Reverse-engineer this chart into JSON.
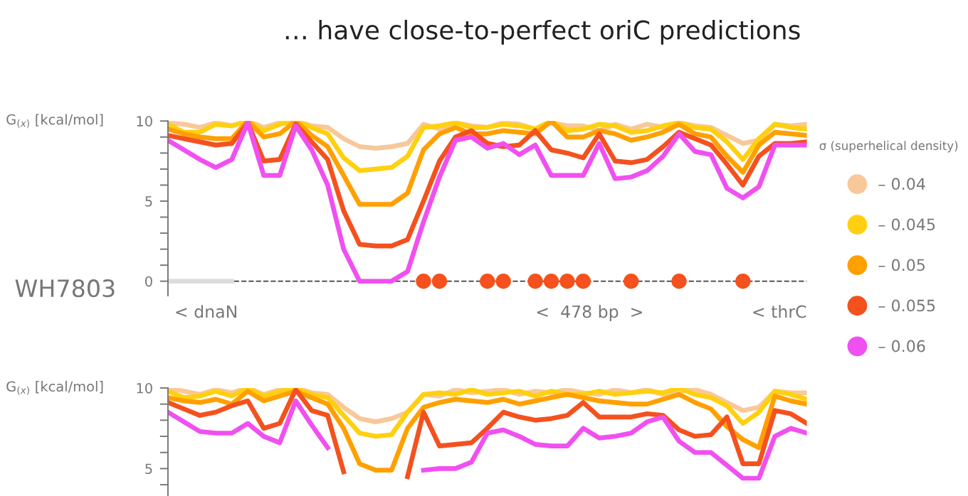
{
  "chart_data": [
    {
      "type": "line",
      "title": "… have close-to-perfect oriC predictions",
      "subtitle": "WH7803",
      "ylabel": "G$_{(x)}$ [kcal/mol]",
      "legend_title": "σ (superhelical density)",
      "legend": "right",
      "tick_labels": "y",
      "grid": false,
      "ylim": [
        -0.9,
        10
      ],
      "categories": [
        null,
        null,
        null,
        null,
        null,
        null,
        null,
        null,
        null,
        null,
        null,
        null,
        null,
        null,
        null,
        null,
        null,
        null,
        null,
        null,
        null,
        null,
        null,
        null,
        null,
        null,
        null,
        null,
        null,
        null,
        null,
        null,
        null,
        null,
        null,
        null,
        null,
        null,
        null,
        null,
        null
      ],
      "yticks": [
        0,
        {
          "value": 1,
          "label": null
        },
        {
          "value": 2,
          "label": null
        },
        {
          "value": 3,
          "label": null
        },
        {
          "value": 4,
          "label": null
        },
        5,
        {
          "value": 6,
          "label": null
        },
        {
          "value": 7,
          "label": null
        },
        {
          "value": 8,
          "label": null
        },
        {
          "value": 9,
          "label": null
        },
        10
      ],
      "ref_lines": [
        {
          "axis": "y",
          "value": 0,
          "color": "#555555",
          "line_style": "dashed"
        }
      ],
      "annotations": [
        "< dnaN",
        "<  478 bp  >",
        "< thrC"
      ],
      "series": [
        {
          "name": "– 0.04",
          "color": "#f8c89a",
          "values": [
            9.9,
            9.8,
            9.6,
            9.9,
            9.7,
            10,
            9.6,
            9.9,
            10,
            9.7,
            9.6,
            8.9,
            8.4,
            8.3,
            8.4,
            8.6,
            9.8,
            9.5,
            9.9,
            9.7,
            9.6,
            9.9,
            9.8,
            9.5,
            9.9,
            9.7,
            9.7,
            9.4,
            9.8,
            9.5,
            9.8,
            9.6,
            9.9,
            9.7,
            9.6,
            9.1,
            8.6,
            8.8,
            9.8,
            9.7,
            9.8
          ]
        },
        {
          "name": "– 0.045",
          "color": "#ffd010",
          "values": [
            9.8,
            9.3,
            9.3,
            9.8,
            9.7,
            10,
            9.4,
            9.8,
            10,
            9.6,
            9.2,
            7.7,
            6.9,
            7.0,
            7.1,
            7.8,
            9.6,
            9.7,
            9.9,
            9.6,
            9.6,
            9.8,
            9.7,
            9.5,
            10,
            9.4,
            9.5,
            9.8,
            9.7,
            9.3,
            9.4,
            9.7,
            9.9,
            9.6,
            9.5,
            8.7,
            7.6,
            8.9,
            9.8,
            9.6,
            9.5
          ]
        },
        {
          "name": "– 0.05",
          "color": "#ffa000",
          "values": [
            9.5,
            9.2,
            9,
            8.9,
            8.9,
            10,
            9,
            9.2,
            10,
            9.1,
            8.4,
            6.6,
            4.8,
            4.8,
            4.8,
            5.5,
            8.2,
            9.2,
            9.6,
            9.2,
            9.2,
            9.4,
            9.3,
            9.2,
            10,
            9,
            9,
            9.4,
            9.2,
            8.8,
            9,
            9.3,
            9.8,
            9.2,
            9,
            7.8,
            6.8,
            8.5,
            9.3,
            9.2,
            9.1
          ]
        },
        {
          "name": "– 0.055",
          "color": "#f4511e",
          "values": [
            9.1,
            8.9,
            8.7,
            8.5,
            8.6,
            9.9,
            7.5,
            7.6,
            9.8,
            8.7,
            7.6,
            4.4,
            2.3,
            2.2,
            2.2,
            2.6,
            5,
            7.5,
            9,
            9.4,
            8.6,
            8.4,
            8.5,
            9.4,
            8.2,
            8,
            7.7,
            9.2,
            7.5,
            7.4,
            7.6,
            8.4,
            9.3,
            8.9,
            8.5,
            7.3,
            6,
            7.8,
            8.6,
            8.6,
            8.7
          ]
        },
        {
          "name": "– 0.06",
          "color": "#f050f0",
          "values": [
            8.8,
            8.2,
            7.6,
            7.1,
            7.6,
            9.9,
            6.6,
            6.6,
            9.7,
            8.2,
            6,
            2,
            0,
            0,
            0,
            0.6,
            3.7,
            6.5,
            8.8,
            9,
            8.3,
            8.6,
            7.9,
            8.5,
            6.6,
            6.6,
            6.6,
            8.6,
            6.4,
            6.5,
            6.9,
            7.8,
            9.2,
            8.1,
            7.9,
            5.8,
            5.2,
            5.9,
            8.5,
            8.5,
            8.5
          ]
        },
        {
          "type": "line",
          "color": "#dcdcdc",
          "values": [
            0,
            0,
            0,
            0,
            0,
            null,
            null,
            null,
            null,
            null,
            null,
            null,
            null,
            null,
            null,
            null,
            null,
            null,
            null,
            null,
            null,
            null,
            null,
            null,
            null,
            null,
            null,
            null,
            null,
            null,
            null,
            null,
            null,
            null,
            null,
            null,
            null,
            null,
            null,
            null,
            null
          ]
        },
        {
          "type": "scatter",
          "marker": "circle",
          "color": "#f4511e",
          "values": [
            null,
            null,
            null,
            null,
            null,
            null,
            null,
            null,
            null,
            null,
            null,
            null,
            null,
            null,
            null,
            null,
            0,
            0,
            null,
            null,
            0,
            0,
            null,
            0,
            0,
            0,
            0,
            null,
            null,
            0,
            null,
            null,
            0,
            null,
            null,
            null,
            0,
            null,
            null,
            null,
            null
          ]
        }
      ]
    },
    {
      "type": "line",
      "ylabel": "G$_{(x)}$ [kcal/mol]",
      "legend": false,
      "tick_labels": "y",
      "grid": false,
      "ylim": [
        3.3,
        10
      ],
      "categories": [
        null,
        null,
        null,
        null,
        null,
        null,
        null,
        null,
        null,
        null,
        null,
        null,
        null,
        null,
        null,
        null,
        null,
        null,
        null,
        null,
        null,
        null,
        null,
        null,
        null,
        null,
        null,
        null,
        null,
        null,
        null,
        null,
        null,
        null,
        null,
        null,
        null,
        null,
        null,
        null,
        null
      ],
      "yticks": [
        {
          "value": 4,
          "label": null
        },
        5,
        {
          "value": 6,
          "label": null
        },
        {
          "value": 7,
          "label": null
        },
        {
          "value": 8,
          "label": null
        },
        {
          "value": 9,
          "label": null
        },
        10
      ],
      "series": [
        {
          "color": "#f8c89a",
          "values": [
            10,
            9.8,
            9.6,
            9.9,
            9.7,
            10,
            9.6,
            9.9,
            10,
            9.7,
            9.6,
            8.8,
            8.1,
            7.9,
            8.1,
            8.5,
            9.6,
            9.5,
            9.9,
            9.7,
            9.8,
            9.9,
            9.6,
            9.8,
            9.7,
            9.9,
            9.7,
            9.6,
            9.9,
            9.7,
            9.9,
            9.6,
            9.8,
            9.9,
            9.6,
            9.1,
            8.6,
            8.8,
            9.8,
            9.7,
            9.7
          ]
        },
        {
          "color": "#ffd010",
          "values": [
            9.8,
            9.4,
            9.5,
            9.8,
            9.5,
            10,
            9.5,
            9.8,
            10,
            9.6,
            9.4,
            8.3,
            7.2,
            7,
            7.1,
            8.5,
            9.6,
            9.7,
            9.6,
            9.9,
            9.6,
            9.7,
            9.8,
            9.5,
            9.8,
            9.6,
            9.6,
            9.8,
            9.6,
            9.7,
            9.8,
            9.7,
            10,
            9.6,
            9.4,
            8.9,
            7.8,
            8.5,
            9.8,
            9.6,
            9.3
          ]
        },
        {
          "color": "#ffa000",
          "values": [
            9.4,
            9.2,
            9.1,
            9.3,
            9,
            9.8,
            9.2,
            9.5,
            9.8,
            9.4,
            9,
            7.5,
            5.3,
            4.9,
            4.9,
            7.5,
            8.8,
            9.1,
            9.3,
            9.2,
            9.1,
            9.3,
            9,
            9.2,
            9.4,
            9.6,
            9.4,
            9.2,
            9.1,
            9,
            9,
            9.3,
            9.6,
            9.1,
            8.7,
            7.6,
            6.8,
            6.3,
            9.5,
            9.2,
            9
          ]
        },
        {
          "color": "#f4511e",
          "values": [
            9.1,
            8.7,
            8.3,
            8.5,
            8.9,
            9.2,
            7.5,
            7.8,
            9.9,
            8.6,
            8.3,
            4.8,
            null,
            null,
            null,
            4.5,
            8.5,
            6.4,
            6.5,
            6.6,
            7.5,
            8.5,
            8.2,
            8,
            8.1,
            8.3,
            9.1,
            8.2,
            8.2,
            8.2,
            8.4,
            8.3,
            7.4,
            7,
            7.1,
            8.2,
            5.3,
            5.3,
            8.6,
            8.4,
            7.8
          ]
        },
        {
          "color": "#f050f0",
          "values": [
            8.5,
            7.9,
            7.3,
            7.2,
            7.2,
            7.8,
            7,
            6.6,
            9.2,
            7.7,
            6.3,
            null,
            null,
            null,
            null,
            null,
            4.9,
            5,
            5,
            5.4,
            7.2,
            7.4,
            7,
            6.5,
            6.4,
            6.4,
            7.5,
            6.9,
            7,
            7.2,
            7.9,
            8.2,
            6.7,
            6,
            6,
            5.2,
            4.4,
            4.4,
            7,
            7.5,
            7.2
          ]
        }
      ]
    }
  ]
}
